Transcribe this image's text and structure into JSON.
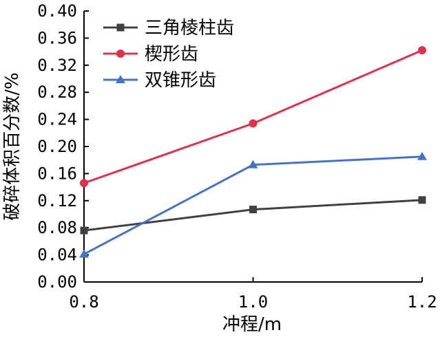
{
  "chart_data": {
    "type": "line",
    "xlabel": "冲程/m",
    "ylabel": "破碎体积百分数/%",
    "x": [
      0.8,
      1.0,
      1.2
    ],
    "x_ticks": [
      "0.8",
      "1.0",
      "1.2"
    ],
    "xlim": [
      0.8,
      1.2
    ],
    "ylim": [
      0.0,
      0.4
    ],
    "y_ticks": [
      "0.00",
      "0.04",
      "0.08",
      "0.12",
      "0.16",
      "0.20",
      "0.24",
      "0.28",
      "0.32",
      "0.36",
      "0.40"
    ],
    "grid": false,
    "legend_position": "top-left",
    "series": [
      {
        "name": "三角棱柱齿",
        "values": [
          0.076,
          0.107,
          0.121
        ],
        "color": "#404040",
        "marker": "square"
      },
      {
        "name": "楔形齿",
        "values": [
          0.146,
          0.234,
          0.342
        ],
        "color": "#e0304a",
        "marker": "circle"
      },
      {
        "name": "双锥形齿",
        "values": [
          0.041,
          0.173,
          0.185
        ],
        "color": "#4472c4",
        "marker": "triangle"
      }
    ]
  }
}
